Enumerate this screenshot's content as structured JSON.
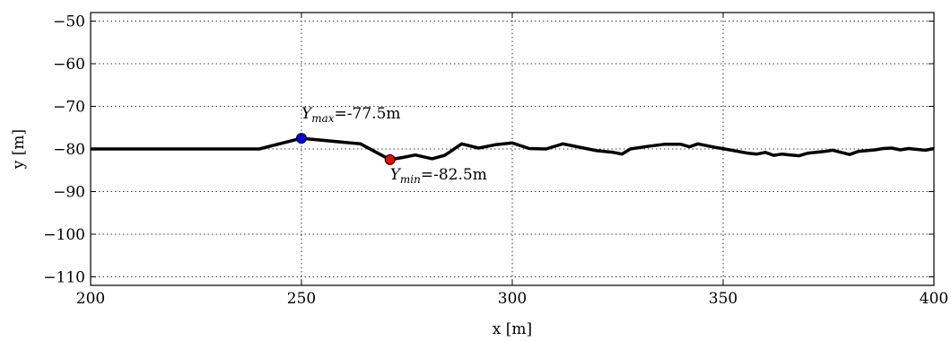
{
  "chart_data": {
    "type": "line",
    "xlabel": "x [m]",
    "ylabel": "y [m]",
    "xlim": [
      200,
      400
    ],
    "ylim": [
      -112,
      -48
    ],
    "grid": true,
    "x_ticks": [
      200,
      250,
      300,
      350,
      400
    ],
    "x_tick_labels": [
      "200",
      "250",
      "300",
      "350",
      "400"
    ],
    "y_ticks": [
      -50,
      -60,
      -70,
      -80,
      -90,
      -100,
      -110
    ],
    "y_tick_labels": [
      "−50",
      "−60",
      "−70",
      "−80",
      "−90",
      "−100",
      "−110"
    ],
    "series": [
      {
        "color": "#000000",
        "x": [
          200,
          240,
          250,
          264,
          271,
          274,
          277,
          281,
          284,
          288,
          292,
          296,
          300,
          304,
          308,
          312,
          316,
          320,
          324,
          326,
          328,
          332,
          336,
          340,
          342,
          344,
          348,
          352,
          356,
          358,
          360,
          362,
          364,
          366,
          368,
          370,
          372,
          374,
          376,
          378,
          380,
          382,
          384,
          386,
          388,
          390,
          392,
          394,
          396,
          398,
          400
        ],
        "y": [
          -80,
          -80,
          -77.5,
          -78.8,
          -82.5,
          -82.0,
          -81.4,
          -82.3,
          -81.5,
          -78.8,
          -79.8,
          -79.0,
          -78.6,
          -79.9,
          -80.0,
          -78.8,
          -79.6,
          -80.4,
          -80.8,
          -81.2,
          -80.0,
          -79.4,
          -78.9,
          -78.9,
          -79.5,
          -78.8,
          -79.6,
          -80.3,
          -81.0,
          -81.2,
          -80.8,
          -81.5,
          -81.2,
          -81.4,
          -81.6,
          -81.0,
          -80.8,
          -80.6,
          -80.3,
          -80.8,
          -81.3,
          -80.6,
          -80.4,
          -80.2,
          -79.9,
          -79.8,
          -80.2,
          -79.9,
          -80.1,
          -80.3,
          -79.9
        ]
      }
    ],
    "points": [
      {
        "name": "max",
        "x": 250,
        "y": -77.5,
        "color": "#0000ff"
      },
      {
        "name": "min",
        "x": 271,
        "y": -82.5,
        "color": "#ff0000"
      }
    ],
    "annotations": {
      "max": {
        "symbol": "Y",
        "subscript": "max",
        "value_text": "=-77.5m"
      },
      "min": {
        "symbol": "Y",
        "subscript": "min",
        "value_text": "=-82.5m"
      }
    }
  }
}
